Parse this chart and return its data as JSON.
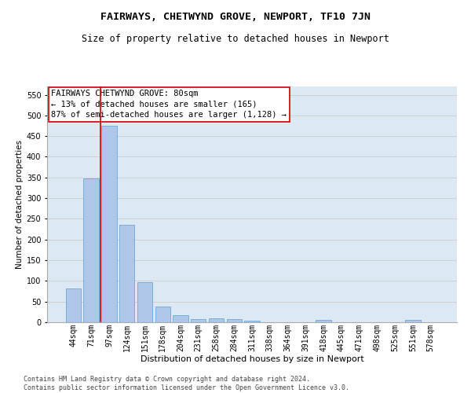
{
  "title": "FAIRWAYS, CHETWYND GROVE, NEWPORT, TF10 7JN",
  "subtitle": "Size of property relative to detached houses in Newport",
  "xlabel": "Distribution of detached houses by size in Newport",
  "ylabel": "Number of detached properties",
  "categories": [
    "44sqm",
    "71sqm",
    "97sqm",
    "124sqm",
    "151sqm",
    "178sqm",
    "204sqm",
    "231sqm",
    "258sqm",
    "284sqm",
    "311sqm",
    "338sqm",
    "364sqm",
    "391sqm",
    "418sqm",
    "445sqm",
    "471sqm",
    "498sqm",
    "525sqm",
    "551sqm",
    "578sqm"
  ],
  "values": [
    82,
    348,
    475,
    235,
    97,
    38,
    17,
    8,
    9,
    8,
    4,
    0,
    0,
    0,
    6,
    0,
    0,
    0,
    0,
    6,
    0
  ],
  "bar_color": "#aec6e8",
  "bar_edge_color": "#5a9fd4",
  "vline_color": "#cc0000",
  "annotation_line1": "FAIRWAYS CHETWYND GROVE: 80sqm",
  "annotation_line2": "← 13% of detached houses are smaller (165)",
  "annotation_line3": "87% of semi-detached houses are larger (1,128) →",
  "annotation_box_facecolor": "#ffffff",
  "annotation_box_edgecolor": "#cc0000",
  "ylim": [
    0,
    570
  ],
  "yticks": [
    0,
    50,
    100,
    150,
    200,
    250,
    300,
    350,
    400,
    450,
    500,
    550
  ],
  "grid_color": "#cccccc",
  "background_color": "#dde8f5",
  "title_fontsize": 9.5,
  "subtitle_fontsize": 8.5,
  "xlabel_fontsize": 8,
  "ylabel_fontsize": 7.5,
  "tick_fontsize": 7,
  "annotation_fontsize": 7.5,
  "footer_text": "Contains HM Land Registry data © Crown copyright and database right 2024.\nContains public sector information licensed under the Open Government Licence v3.0.",
  "footer_fontsize": 6
}
